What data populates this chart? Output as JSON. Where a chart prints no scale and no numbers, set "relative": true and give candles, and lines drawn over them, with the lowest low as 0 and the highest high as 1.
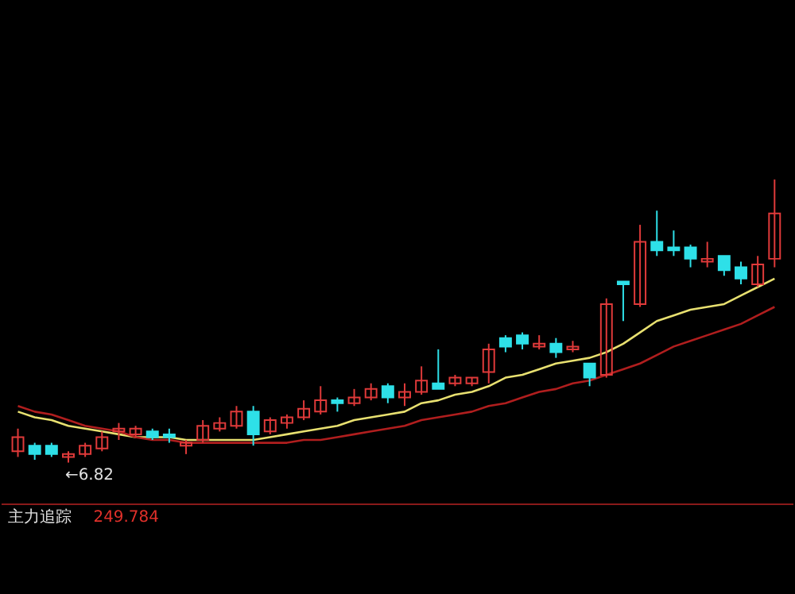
{
  "chart_data": {
    "type": "candlestick",
    "relative": true,
    "grid": false,
    "categories": [
      null,
      null,
      null,
      null,
      null,
      null,
      null,
      null,
      null,
      null,
      null,
      null,
      null,
      null,
      null,
      null,
      null,
      null,
      null,
      null,
      null,
      null,
      null,
      null,
      null,
      null,
      null,
      null,
      null,
      null,
      null,
      null,
      null,
      null,
      null,
      null,
      null,
      null,
      null,
      null,
      null,
      null,
      null,
      null,
      null,
      null
    ],
    "ohlc": [
      [
        0.04,
        0.12,
        0.02,
        0.09
      ],
      [
        0.06,
        0.07,
        0.01,
        0.03
      ],
      [
        0.06,
        0.07,
        0.02,
        0.03
      ],
      [
        0.02,
        0.04,
        0,
        0.03
      ],
      [
        0.03,
        0.07,
        0.02,
        0.06
      ],
      [
        0.05,
        0.11,
        0.04,
        0.09
      ],
      [
        0.11,
        0.14,
        0.08,
        0.12
      ],
      [
        0.1,
        0.13,
        0.09,
        0.12
      ],
      [
        0.11,
        0.12,
        0.08,
        0.09
      ],
      [
        0.1,
        0.12,
        0.07,
        0.09
      ],
      [
        0.06,
        0.08,
        0.03,
        0.07
      ],
      [
        0.08,
        0.15,
        0.07,
        0.13
      ],
      [
        0.12,
        0.16,
        0.11,
        0.14
      ],
      [
        0.13,
        0.2,
        0.12,
        0.18
      ],
      [
        0.18,
        0.2,
        0.06,
        0.1
      ],
      [
        0.11,
        0.16,
        0.1,
        0.15
      ],
      [
        0.14,
        0.17,
        0.12,
        0.16
      ],
      [
        0.16,
        0.22,
        0.15,
        0.19
      ],
      [
        0.18,
        0.27,
        0.17,
        0.22
      ],
      [
        0.22,
        0.23,
        0.18,
        0.21
      ],
      [
        0.21,
        0.26,
        0.2,
        0.23
      ],
      [
        0.23,
        0.28,
        0.22,
        0.26
      ],
      [
        0.27,
        0.28,
        0.21,
        0.23
      ],
      [
        0.23,
        0.28,
        0.2,
        0.25
      ],
      [
        0.25,
        0.34,
        0.24,
        0.29
      ],
      [
        0.28,
        0.4,
        0.26,
        0.26
      ],
      [
        0.28,
        0.31,
        0.27,
        0.3
      ],
      [
        0.28,
        0.3,
        0.27,
        0.3
      ],
      [
        0.32,
        0.42,
        0.28,
        0.4
      ],
      [
        0.44,
        0.45,
        0.39,
        0.41
      ],
      [
        0.45,
        0.46,
        0.4,
        0.42
      ],
      [
        0.41,
        0.45,
        0.4,
        0.42
      ],
      [
        0.42,
        0.44,
        0.37,
        0.39
      ],
      [
        0.4,
        0.43,
        0.39,
        0.41
      ],
      [
        0.35,
        0.35,
        0.27,
        0.3
      ],
      [
        0.31,
        0.58,
        0.3,
        0.56
      ],
      [
        0.64,
        0.64,
        0.5,
        0.63
      ],
      [
        0.56,
        0.84,
        0.55,
        0.78
      ],
      [
        0.78,
        0.89,
        0.73,
        0.75
      ],
      [
        0.76,
        0.82,
        0.73,
        0.75
      ],
      [
        0.76,
        0.77,
        0.69,
        0.72
      ],
      [
        0.71,
        0.78,
        0.69,
        0.72
      ],
      [
        0.73,
        0.73,
        0.66,
        0.68
      ],
      [
        0.69,
        0.71,
        0.63,
        0.65
      ],
      [
        0.63,
        0.73,
        0.62,
        0.7
      ],
      [
        0.72,
        1,
        0.69,
        0.88
      ]
    ],
    "colors": [
      "#e03a3a",
      "#2ee0e8",
      "#2ee0e8",
      "#e03a3a",
      "#e03a3a",
      "#e03a3a",
      "#e03a3a",
      "#e03a3a",
      "#2ee0e8",
      "#2ee0e8",
      "#e03a3a",
      "#e03a3a",
      "#e03a3a",
      "#e03a3a",
      "#2ee0e8",
      "#e03a3a",
      "#e03a3a",
      "#e03a3a",
      "#e03a3a",
      "#2ee0e8",
      "#e03a3a",
      "#e03a3a",
      "#2ee0e8",
      "#e03a3a",
      "#e03a3a",
      "#2ee0e8",
      "#e03a3a",
      "#e03a3a",
      "#e03a3a",
      "#2ee0e8",
      "#2ee0e8",
      "#e03a3a",
      "#2ee0e8",
      "#e03a3a",
      "#2ee0e8",
      "#e03a3a",
      "#2ee0e8",
      "#e03a3a",
      "#2ee0e8",
      "#2ee0e8",
      "#2ee0e8",
      "#e03a3a",
      "#2ee0e8",
      "#2ee0e8",
      "#e03a3a",
      "#e03a3a"
    ],
    "series": [
      {
        "type": "line",
        "color": "#e8e070",
        "values": [
          0.18,
          0.16,
          0.15,
          0.13,
          0.12,
          0.11,
          0.1,
          0.09,
          0.09,
          0.09,
          0.08,
          0.08,
          0.08,
          0.08,
          0.08,
          0.09,
          0.1,
          0.11,
          0.12,
          0.13,
          0.15,
          0.16,
          0.17,
          0.18,
          0.21,
          0.22,
          0.24,
          0.25,
          0.27,
          0.3,
          0.31,
          0.33,
          0.35,
          0.36,
          0.37,
          0.39,
          0.42,
          0.46,
          0.5,
          0.52,
          0.54,
          0.55,
          0.56,
          0.59,
          0.62,
          0.65
        ]
      },
      {
        "type": "line",
        "color": "#b01e1e",
        "values": [
          0.2,
          0.18,
          0.17,
          0.15,
          0.13,
          0.12,
          0.11,
          0.09,
          0.08,
          0.08,
          0.07,
          0.07,
          0.07,
          0.07,
          0.07,
          0.07,
          0.07,
          0.08,
          0.08,
          0.09,
          0.1,
          0.11,
          0.12,
          0.13,
          0.15,
          0.16,
          0.17,
          0.18,
          0.2,
          0.21,
          0.23,
          0.25,
          0.26,
          0.28,
          0.29,
          0.31,
          0.33,
          0.35,
          0.38,
          0.41,
          0.43,
          0.45,
          0.47,
          0.49,
          0.52,
          0.55
        ]
      }
    ],
    "annotations": [
      "←6.82",
      "主力追踪",
      "249.784"
    ]
  }
}
